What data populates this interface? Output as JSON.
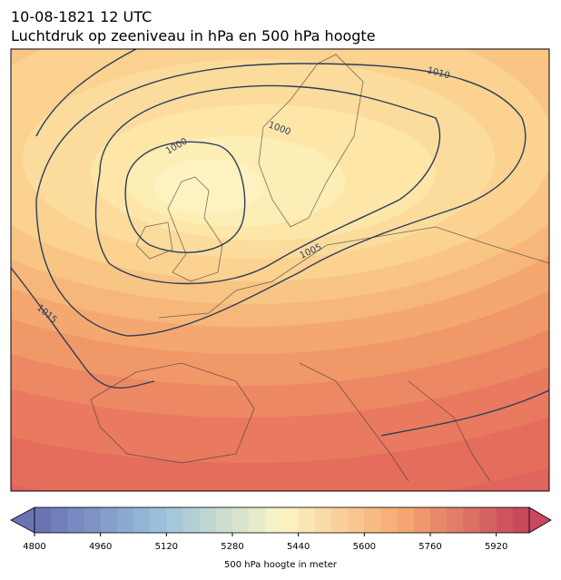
{
  "title": "10-08-1821 12 UTC",
  "subtitle": "Luchtdruk op zeeniveau in hPa en 500 hPa hoogte",
  "isobar_labels": [
    1010,
    1000,
    1000,
    1005,
    1015
  ],
  "colorbar": {
    "label": "500 hPa hoogte in meter",
    "range": [
      4800,
      6000
    ],
    "ticks": [
      4800,
      4960,
      5120,
      5280,
      5440,
      5600,
      5760,
      5920
    ],
    "levels": [
      4800,
      4840,
      4880,
      4920,
      4960,
      5000,
      5040,
      5080,
      5120,
      5160,
      5200,
      5240,
      5280,
      5320,
      5360,
      5400,
      5440,
      5480,
      5520,
      5560,
      5600,
      5640,
      5680,
      5720,
      5760,
      5800,
      5840,
      5880,
      5920,
      5960,
      6000
    ],
    "color_stops": [
      "#6a74b4",
      "#9bc2dc",
      "#fbf6c4",
      "#f7a870",
      "#c8485c"
    ]
  }
}
